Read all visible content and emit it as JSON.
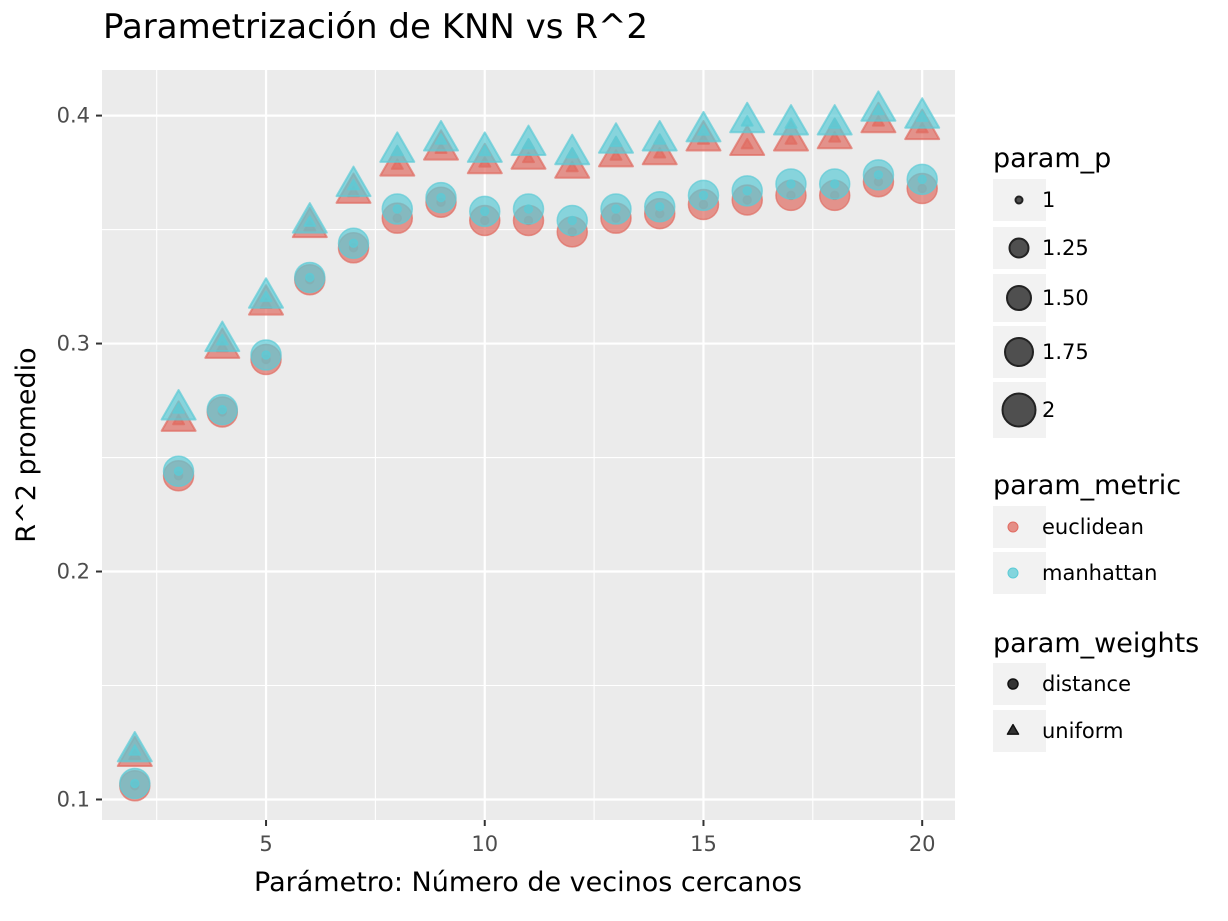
{
  "chart_data": {
    "type": "scatter",
    "title": "Parametrización de KNN vs R^2",
    "xlabel": "Parámetro: Número de vecinos cercanos",
    "ylabel": "R^2 promedio",
    "xlim": [
      1.25,
      20.75
    ],
    "ylim": [
      0.091,
      0.42
    ],
    "xticks": [
      5,
      10,
      15,
      20
    ],
    "yticks": [
      0.1,
      0.2,
      0.3,
      0.4
    ],
    "xtick_labels": [
      "5",
      "10",
      "15",
      "20"
    ],
    "ytick_labels": [
      "0.1",
      "0.2",
      "0.3",
      "0.4"
    ],
    "grid": true,
    "x": [
      2,
      3,
      4,
      5,
      6,
      7,
      8,
      9,
      10,
      11,
      12,
      13,
      14,
      15,
      16,
      17,
      18,
      19,
      20
    ],
    "series": [
      {
        "name": "euclidean",
        "weights": "distance",
        "values": [
          0.106,
          0.242,
          0.27,
          0.293,
          0.328,
          0.342,
          0.355,
          0.362,
          0.354,
          0.354,
          0.349,
          0.355,
          0.357,
          0.361,
          0.363,
          0.365,
          0.365,
          0.371,
          0.368
        ]
      },
      {
        "name": "euclidean",
        "weights": "uniform",
        "values": [
          0.119,
          0.266,
          0.298,
          0.317,
          0.351,
          0.366,
          0.378,
          0.385,
          0.379,
          0.381,
          0.377,
          0.382,
          0.383,
          0.389,
          0.387,
          0.389,
          0.39,
          0.397,
          0.394
        ]
      },
      {
        "name": "manhattan",
        "weights": "distance",
        "values": [
          0.107,
          0.244,
          0.271,
          0.295,
          0.329,
          0.344,
          0.359,
          0.364,
          0.358,
          0.359,
          0.354,
          0.359,
          0.36,
          0.365,
          0.367,
          0.37,
          0.37,
          0.374,
          0.372
        ]
      },
      {
        "name": "manhattan",
        "weights": "uniform",
        "values": [
          0.121,
          0.271,
          0.301,
          0.32,
          0.353,
          0.369,
          0.384,
          0.389,
          0.384,
          0.387,
          0.383,
          0.388,
          0.389,
          0.393,
          0.397,
          0.396,
          0.396,
          0.402,
          0.399
        ]
      }
    ],
    "legends": {
      "param_p": {
        "title": "param_p",
        "entries": [
          "1",
          "1.25",
          "1.50",
          "1.75",
          "2"
        ]
      },
      "param_metric": {
        "title": "param_metric",
        "entries": [
          "euclidean",
          "manhattan"
        ]
      },
      "param_weights": {
        "title": "param_weights",
        "entries": [
          "distance",
          "uniform"
        ]
      }
    },
    "legend_position": "right"
  },
  "colors": {
    "euclidean": "#e06c62",
    "manhattan": "#5ccbd6",
    "panel": "#ebebeb",
    "grid": "#ffffff",
    "key_background": "#f2f2f2",
    "legend_marker": "#333333"
  }
}
